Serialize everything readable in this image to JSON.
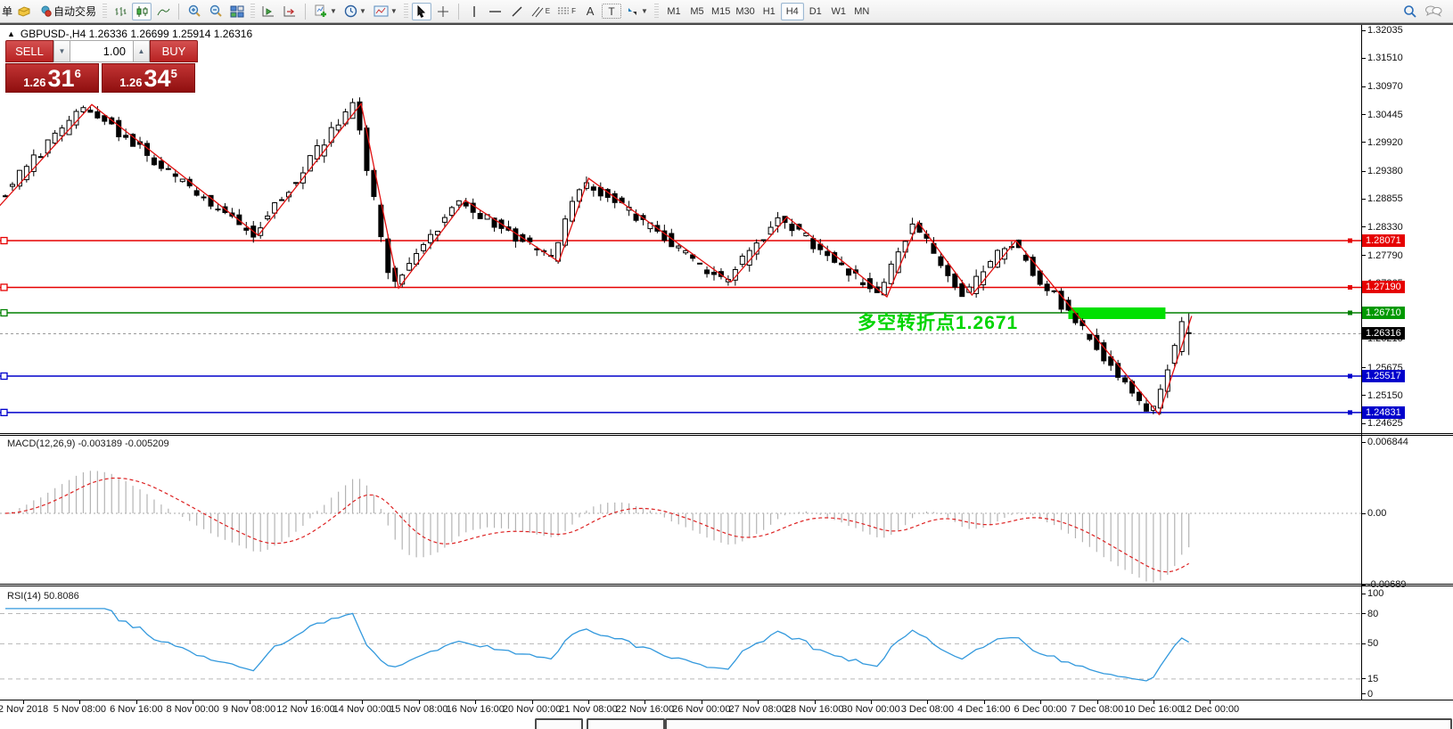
{
  "toolbar": {
    "order_label": "单",
    "autotrade_label": "自动交易",
    "timeframes": [
      "M1",
      "M5",
      "M15",
      "M30",
      "H1",
      "H4",
      "D1",
      "W1",
      "MN"
    ],
    "active_timeframe": "H4",
    "tool_a_label": "A",
    "tool_t_label": "T",
    "tool_e_label": "E",
    "tool_f_label": "F"
  },
  "quote_panel": {
    "collapse_icon": "▲",
    "title": "GBPUSD-,H4  1.26336 1.26699 1.25914 1.26316",
    "sell_label": "SELL",
    "buy_label": "BUY",
    "volume": "1.00",
    "sell_price_small": "1.26",
    "sell_price_big": "31",
    "sell_price_sup": "6",
    "buy_price_small": "1.26",
    "buy_price_big": "34",
    "buy_price_sup": "5"
  },
  "chart_data": {
    "type": "candlestick",
    "symbol": "GBPUSD-",
    "timeframe": "H4",
    "bars": 168,
    "last_candle_ohlc": [
      1.26336,
      1.26699,
      1.25914,
      1.26316
    ],
    "y_axis_ticks": [
      "1.32035",
      "1.31510",
      "1.30970",
      "1.30445",
      "1.29920",
      "1.29380",
      "1.28855",
      "1.28330",
      "1.27790",
      "1.27265",
      "1.26740",
      "1.26215",
      "1.25675",
      "1.25150",
      "1.24625"
    ],
    "x_axis_labels": [
      "2 Nov 2018",
      "5 Nov 08:00",
      "6 Nov 16:00",
      "8 Nov 00:00",
      "9 Nov 08:00",
      "12 Nov 16:00",
      "14 Nov 00:00",
      "15 Nov 08:00",
      "16 Nov 16:00",
      "20 Nov 00:00",
      "21 Nov 08:00",
      "22 Nov 16:00",
      "26 Nov 00:00",
      "27 Nov 08:00",
      "28 Nov 16:00",
      "30 Nov 00:00",
      "3 Dec 08:00",
      "4 Dec 16:00",
      "6 Dec 00:00",
      "7 Dec 08:00",
      "10 Dec 16:00",
      "12 Dec 00:00"
    ],
    "horizontal_lines": [
      {
        "label": "1.28071",
        "price": 1.28071,
        "color": "#e60000"
      },
      {
        "label": "1.27190",
        "price": 1.2719,
        "color": "#e60000"
      },
      {
        "label": "1.26710",
        "price": 1.2671,
        "color": "#008000"
      },
      {
        "label": "1.25517",
        "price": 1.25517,
        "color": "#0000cc"
      },
      {
        "label": "1.24831",
        "price": 1.24831,
        "color": "#0000cc"
      }
    ],
    "current_price": {
      "label": "1.26316",
      "price": 1.26316,
      "color": "#000000"
    },
    "zigzag_pivots": [
      {
        "bar": -1,
        "price": 1.287
      },
      {
        "bar": 12.2,
        "price": 1.30636
      },
      {
        "bar": 35.7,
        "price": 1.2817
      },
      {
        "bar": 50.2,
        "price": 1.30652
      },
      {
        "bar": 55.5,
        "price": 1.27177
      },
      {
        "bar": 64.9,
        "price": 1.28832
      },
      {
        "bar": 78.1,
        "price": 1.27674
      },
      {
        "bar": 82.3,
        "price": 1.29246
      },
      {
        "bar": 102.4,
        "price": 1.27293
      },
      {
        "bar": 110.3,
        "price": 1.28518
      },
      {
        "bar": 124.4,
        "price": 1.27012
      },
      {
        "bar": 128.8,
        "price": 1.28419
      },
      {
        "bar": 136.4,
        "price": 1.27045
      },
      {
        "bar": 142.6,
        "price": 1.28071
      },
      {
        "bar": 162.8,
        "price": 1.24794
      },
      {
        "bar": 167.4,
        "price": 1.2665
      }
    ],
    "annotation": {
      "text": "多空转折点1.2671",
      "color": "#00d500"
    },
    "highlight_box": {
      "from_bar": 150,
      "to_bar": 163.7,
      "price": 1.2671,
      "color": "#00e000"
    },
    "indicators": {
      "macd": {
        "label": "MACD(12,26,9)",
        "values_text": "-0.003189 -0.005209",
        "fast": 12,
        "slow": 26,
        "signal": 9,
        "axis_labels": [
          {
            "text": "0.006844",
            "value": 0.006844
          },
          {
            "text": "0.00",
            "value": 0.0
          },
          {
            "text": "-0.00689",
            "value": -0.00689
          }
        ]
      },
      "rsi": {
        "label": "RSI(14)",
        "value_text": "50.8086",
        "period": 14,
        "levels": [
          80,
          50,
          15
        ],
        "axis_labels": [
          {
            "text": "100",
            "value": 100
          },
          {
            "text": "80",
            "value": 80
          },
          {
            "text": "50",
            "value": 50
          },
          {
            "text": "15",
            "value": 15
          },
          {
            "text": "0",
            "value": 0
          }
        ]
      }
    },
    "synthesis": {
      "seed": 987654321,
      "body_noise": 0.0022,
      "wick_noise": 0.0013
    }
  },
  "colors": {
    "bull_fill": "#ffffff",
    "bear_fill": "#000000",
    "candle_stroke": "#000000",
    "zigzag": "#e01010",
    "macd_histogram": "#b4b4b4",
    "macd_signal": "#dd2222",
    "rsi_line": "#3399dd",
    "sell_buy_red": "#b82222",
    "tag_text": "#ffffff"
  },
  "bottom_tabs": {
    "count": 3
  }
}
